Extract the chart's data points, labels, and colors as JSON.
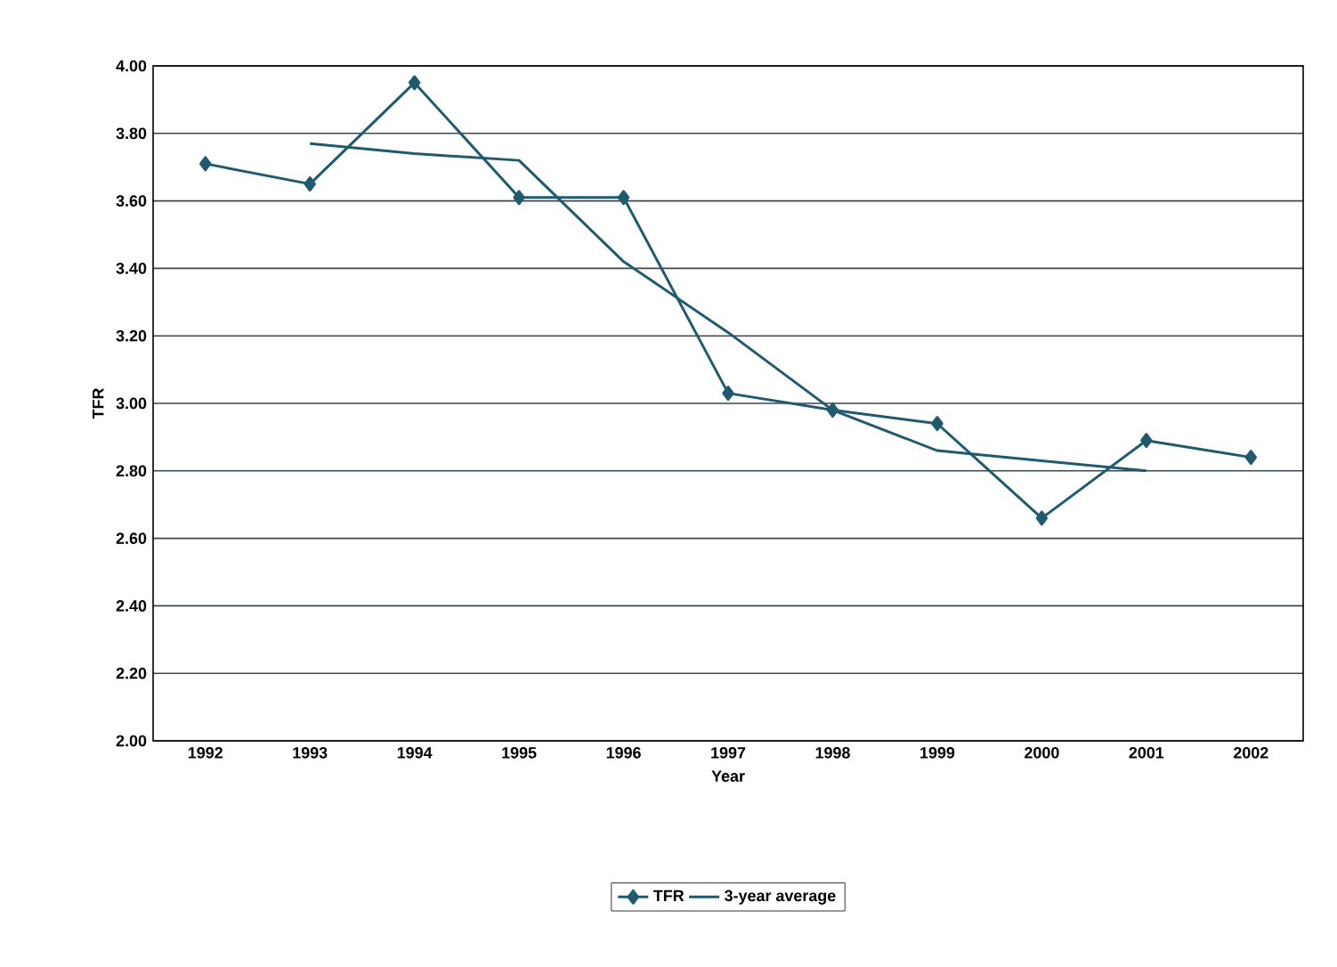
{
  "chart_data": {
    "type": "line",
    "xlabel": "Year",
    "ylabel": "TFR",
    "categories": [
      "1992",
      "1993",
      "1994",
      "1995",
      "1996",
      "1997",
      "1998",
      "1999",
      "2000",
      "2001",
      "2002"
    ],
    "series": [
      {
        "name": "TFR",
        "color": "#1f5a6e",
        "marker": "diamond",
        "values": [
          3.71,
          3.65,
          3.95,
          3.61,
          3.61,
          3.03,
          2.98,
          2.94,
          2.66,
          2.89,
          2.84
        ]
      },
      {
        "name": "3-year average",
        "color": "#1f5a6e",
        "marker": "none",
        "values": [
          null,
          3.77,
          3.74,
          3.72,
          3.42,
          3.21,
          2.98,
          2.86,
          2.83,
          2.8,
          null
        ]
      }
    ],
    "ylim": [
      2.0,
      4.0
    ],
    "yticks": [
      {
        "value": 2.0,
        "label": "2.00"
      },
      {
        "value": 2.2,
        "label": "2.20"
      },
      {
        "value": 2.4,
        "label": "2.40"
      },
      {
        "value": 2.6,
        "label": "2.60"
      },
      {
        "value": 2.8,
        "label": "2.80"
      },
      {
        "value": 3.0,
        "label": "3.00"
      },
      {
        "value": 3.2,
        "label": "3.20"
      },
      {
        "value": 3.4,
        "label": "3.40"
      },
      {
        "value": 3.6,
        "label": "3.60"
      },
      {
        "value": 3.8,
        "label": "3.80"
      },
      {
        "value": 4.0,
        "label": "4.00"
      }
    ],
    "grid": "y",
    "legend": "bottom",
    "line_style": "solid"
  }
}
